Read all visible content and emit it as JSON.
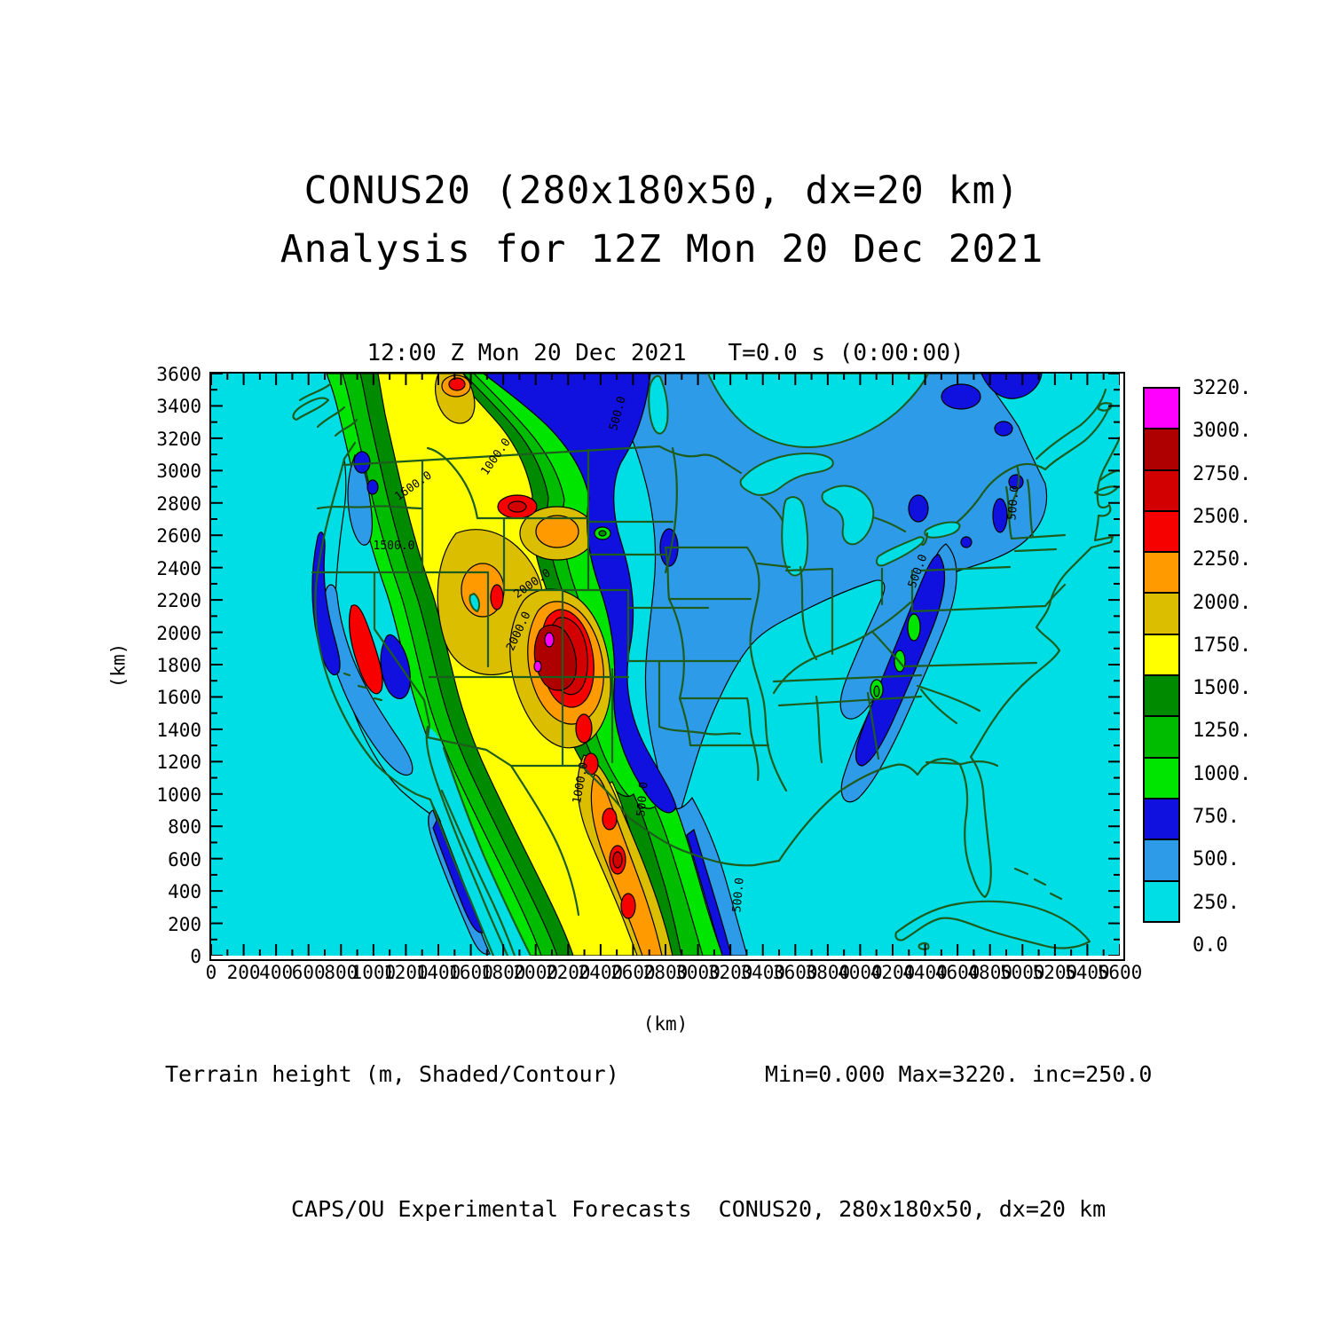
{
  "page": {
    "title_line1": "CONUS20 (280x180x50, dx=20 km)",
    "title_line2": "Analysis for 12Z Mon 20 Dec 2021",
    "footer": "CAPS/OU Experimental Forecasts  CONUS20, 280x180x50, dx=20 km"
  },
  "chart_data": {
    "type": "heatmap",
    "subtype": "terrain-filled-contour-map",
    "title": "12:00 Z Mon 20 Dec 2021   T=0.0 s (0:00:00)",
    "field_label": "Terrain height (m, Shaded/Contour)",
    "stats_label": "Min=0.000 Max=3220. inc=250.0",
    "min": 0.0,
    "max": 3220.0,
    "increment": 250.0,
    "xlabel": "(km)",
    "ylabel": "(km)",
    "xlim": [
      0,
      5600
    ],
    "ylim": [
      0,
      3600
    ],
    "x_major_tick": 200,
    "x_minor_tick": 100,
    "y_major_tick": 200,
    "y_minor_tick": 100,
    "x_ticks": [
      0,
      200,
      400,
      600,
      800,
      1000,
      1200,
      1400,
      1600,
      1800,
      2000,
      2200,
      2400,
      2600,
      2800,
      3000,
      3200,
      3400,
      3600,
      3800,
      4000,
      4200,
      4400,
      4600,
      4800,
      5000,
      5200,
      5400,
      5600
    ],
    "y_ticks": [
      0,
      200,
      400,
      600,
      800,
      1000,
      1200,
      1400,
      1600,
      1800,
      2000,
      2200,
      2400,
      2600,
      2800,
      3000,
      3200,
      3400,
      3600
    ],
    "levels": [
      0.0,
      250,
      500,
      750,
      1000,
      1250,
      1500,
      1750,
      2000,
      2250,
      2500,
      2750,
      3000,
      3220
    ],
    "palette": [
      "#00DEE5",
      "#2E9BE8",
      "#1111DF",
      "#00E500",
      "#00BC00",
      "#008A00",
      "#FFFF00",
      "#DCBE00",
      "#FF9B00",
      "#F60000",
      "#D30000",
      "#AE0000",
      "#FF00FF"
    ],
    "contour_labels": [
      "1600.0",
      "1500.0",
      "1000.0",
      "2000.0",
      "2000.0",
      "1000.0",
      "500.0",
      "500.0",
      "500.0",
      "500.0",
      "500.0"
    ],
    "map_outline_color": "#1E5C1E",
    "contour_line_color": "#000000",
    "grid": false,
    "legend_position": "right"
  },
  "colorbar": {
    "labels_top_to_bottom": [
      "3220.",
      "3000.",
      "2750.",
      "2500.",
      "2250.",
      "2000.",
      "1750.",
      "1500.",
      "1250.",
      "1000.",
      "750.",
      "500.",
      "250.",
      "0.0"
    ],
    "colors_top_to_bottom": [
      "#FF00FF",
      "#AE0000",
      "#D30000",
      "#F60000",
      "#FF9B00",
      "#DCBE00",
      "#FFFF00",
      "#008A00",
      "#00BC00",
      "#00E500",
      "#1111DF",
      "#2E9BE8",
      "#00DEE5"
    ]
  }
}
